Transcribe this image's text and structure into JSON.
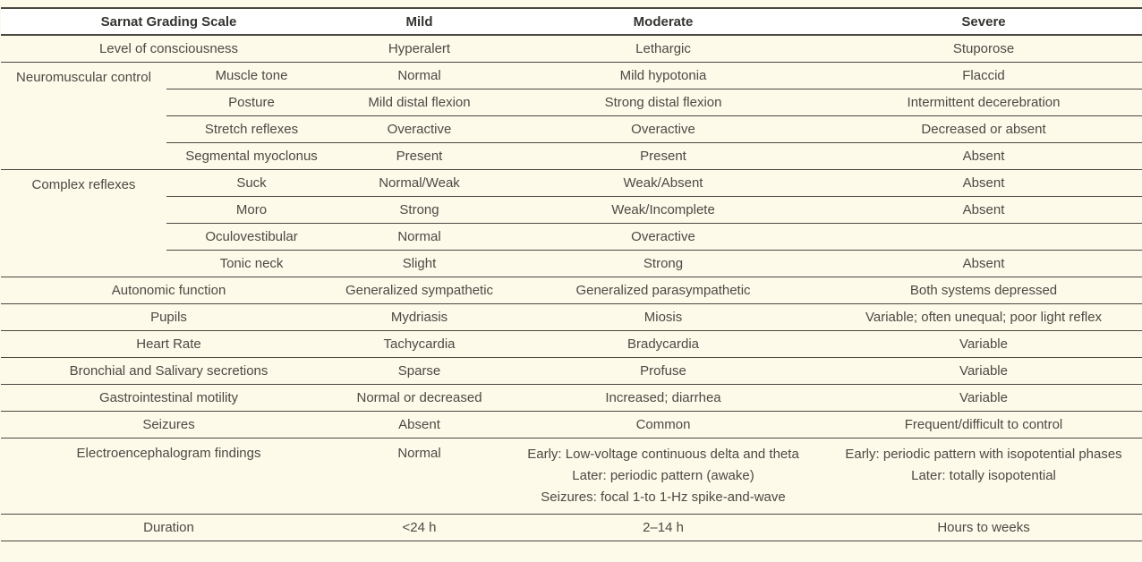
{
  "colors": {
    "page_background": "#FDFAEA",
    "header_background": "#FFFFFF",
    "border": "#4A4942",
    "body_text": "#4C4A43",
    "header_text": "#343431"
  },
  "table": {
    "headers": {
      "scale": "Sarnat Grading Scale",
      "mild": "Mild",
      "moderate": "Moderate",
      "severe": "Severe"
    },
    "categories": {
      "neuromuscular": "Neuromuscular control",
      "complex": "Complex reflexes"
    },
    "rows": {
      "consciousness": {
        "label": "Level of consciousness",
        "mild": "Hyperalert",
        "moderate": "Lethargic",
        "severe": "Stuporose"
      },
      "muscle_tone": {
        "label": "Muscle tone",
        "mild": "Normal",
        "moderate": "Mild hypotonia",
        "severe": "Flaccid"
      },
      "posture": {
        "label": "Posture",
        "mild": "Mild distal flexion",
        "moderate": "Strong distal flexion",
        "severe": "Intermittent decerebration"
      },
      "stretch_reflexes": {
        "label": "Stretch reflexes",
        "mild": "Overactive",
        "moderate": "Overactive",
        "severe": "Decreased or absent"
      },
      "segmental_myoclonus": {
        "label": "Segmental myoclonus",
        "mild": "Present",
        "moderate": "Present",
        "severe": "Absent"
      },
      "suck": {
        "label": "Suck",
        "mild": "Normal/Weak",
        "moderate": "Weak/Absent",
        "severe": "Absent"
      },
      "moro": {
        "label": "Moro",
        "mild": "Strong",
        "moderate": "Weak/Incomplete",
        "severe": "Absent"
      },
      "oculovestibular": {
        "label": "Oculovestibular",
        "mild": "Normal",
        "moderate": "Overactive",
        "severe": ""
      },
      "tonic_neck": {
        "label": "Tonic neck",
        "mild": "Slight",
        "moderate": "Strong",
        "severe": "Absent"
      },
      "autonomic": {
        "label": "Autonomic function",
        "mild": "Generalized sympathetic",
        "moderate": "Generalized parasympathetic",
        "severe": "Both systems depressed"
      },
      "pupils": {
        "label": "Pupils",
        "mild": "Mydriasis",
        "moderate": "Miosis",
        "severe": "Variable; often unequal; poor light reflex"
      },
      "heart_rate": {
        "label": "Heart Rate",
        "mild": "Tachycardia",
        "moderate": "Bradycardia",
        "severe": "Variable"
      },
      "secretions": {
        "label": "Bronchial and Salivary secretions",
        "mild": "Sparse",
        "moderate": "Profuse",
        "severe": "Variable"
      },
      "gi_motility": {
        "label": "Gastrointestinal motility",
        "mild": "Normal or decreased",
        "moderate": "Increased; diarrhea",
        "severe": "Variable"
      },
      "seizures": {
        "label": "Seizures",
        "mild": "Absent",
        "moderate": "Common",
        "severe": "Frequent/difficult to control"
      },
      "eeg": {
        "label": "Electroencephalogram findings",
        "mild": "Normal",
        "moderate_lines": [
          "Early: Low-voltage continuous delta and theta",
          "Later: periodic pattern (awake)",
          "Seizures: focal 1-to 1-Hz spike-and-wave"
        ],
        "severe_lines": [
          "Early: periodic pattern with isopotential phases",
          "Later: totally isopotential"
        ]
      },
      "duration": {
        "label": "Duration",
        "mild": "<24 h",
        "moderate": "2–14 h",
        "severe": "Hours to weeks"
      }
    }
  }
}
